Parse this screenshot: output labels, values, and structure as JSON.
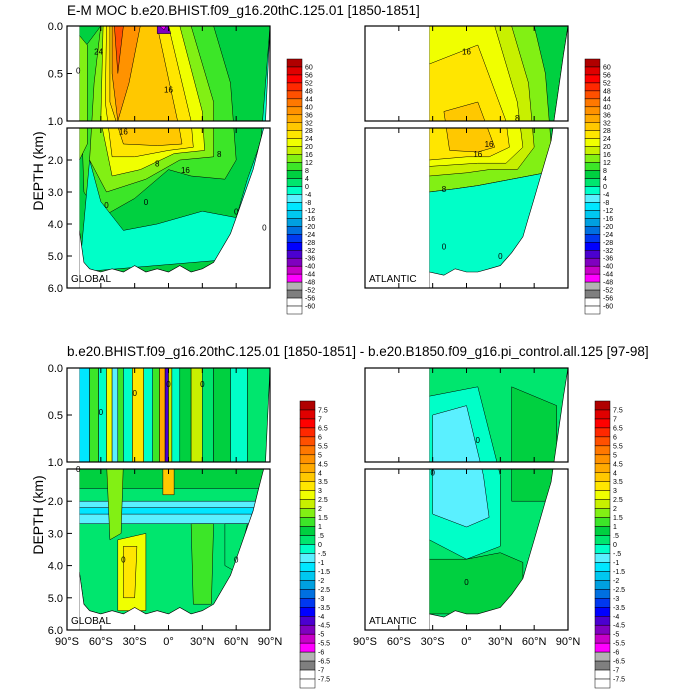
{
  "header": {
    "main_title": "E-M MOC  b.e20.BHIST.f09_g16.20thC.125.01 [1850-1851]",
    "diff_title": "b.e20.BHIST.f09_g16.20thC.125.01 [1850-1851] - b.e20.B1850.f09_g16.pi_control.all.125 [97-98]"
  },
  "chart_data": [
    {
      "type": "heatmap",
      "panel": "top-left",
      "label": "GLOBAL",
      "ylabel": "DEPTH (km)",
      "yticks": [
        "0.0",
        "0.5",
        "1.0",
        "2.0",
        "3.0",
        "4.0",
        "5.0",
        "6.0"
      ],
      "xticks": [],
      "ylim": [
        0,
        6
      ],
      "xlim": [
        -90,
        90
      ],
      "contour_levels": [
        "60",
        "56",
        "52",
        "48",
        "44",
        "40",
        "36",
        "32",
        "28",
        "24",
        "20",
        "16",
        "12",
        "8",
        "4",
        "0",
        "-4",
        "-8",
        "-12",
        "-16",
        "-20",
        "-24",
        "-28",
        "-32",
        "-36",
        "-40",
        "-44",
        "-48",
        "-52",
        "-56",
        "-60"
      ],
      "contour_labels": [
        "24",
        "16",
        "16",
        "16",
        "8",
        "8",
        "0",
        "0",
        "0",
        "0",
        "0"
      ]
    },
    {
      "type": "heatmap",
      "panel": "top-right",
      "label": "ATLANTIC",
      "ylim": [
        0,
        6
      ],
      "xlim": [
        -90,
        90
      ],
      "contour_labels": [
        "16",
        "16",
        "16",
        "8",
        "8",
        "0",
        "0"
      ]
    },
    {
      "type": "heatmap",
      "panel": "bottom-left",
      "label": "GLOBAL",
      "ylabel": "DEPTH (km)",
      "yticks": [
        "0.0",
        "0.5",
        "1.0",
        "2.0",
        "3.0",
        "4.0",
        "5.0",
        "6.0"
      ],
      "xticks": [
        "90°S",
        "60°S",
        "30°S",
        "0°",
        "30°N",
        "60°N",
        "90°N"
      ],
      "ylim": [
        0,
        6
      ],
      "xlim": [
        -90,
        90
      ],
      "contour_levels": [
        "7.5",
        "7",
        "6.5",
        "6",
        "5.5",
        "5",
        "4.5",
        "4",
        "3.5",
        "3",
        "2.5",
        "2",
        "1.5",
        "1",
        ".5",
        "0",
        "-.5",
        "-1",
        "-1.5",
        "-2",
        "-2.5",
        "-3",
        "-3.5",
        "-4",
        "-4.5",
        "-5",
        "-5.5",
        "-6",
        "-6.5",
        "-7",
        "-7.5"
      ],
      "contour_labels": [
        "0",
        "0",
        "0",
        "0",
        "0",
        "0",
        "0"
      ]
    },
    {
      "type": "heatmap",
      "panel": "bottom-right",
      "label": "ATLANTIC",
      "xticks": [
        "90°S",
        "60°S",
        "30°S",
        "0°",
        "30°N",
        "60°N",
        "90°N"
      ],
      "ylim": [
        0,
        6
      ],
      "xlim": [
        -90,
        90
      ],
      "contour_labels": [
        "0",
        "0",
        "0"
      ]
    }
  ],
  "colors": {
    "scale": [
      "#ffffff",
      "#7f7f7f",
      "#b3b3b3",
      "#ff00ff",
      "#c800c8",
      "#8000c0",
      "#4b00d0",
      "#0000ff",
      "#0038f0",
      "#0070e0",
      "#00a0e0",
      "#00c8f0",
      "#00e6ff",
      "#5af0ff",
      "#00ffc8",
      "#00e66e",
      "#00d040",
      "#3ce628",
      "#82f014",
      "#c8f000",
      "#f0ff00",
      "#ffe600",
      "#ffc800",
      "#ffaa00",
      "#ff9200",
      "#ff7800",
      "#ff5000",
      "#ff2800",
      "#ff0000",
      "#e00000",
      "#b00000"
    ]
  }
}
